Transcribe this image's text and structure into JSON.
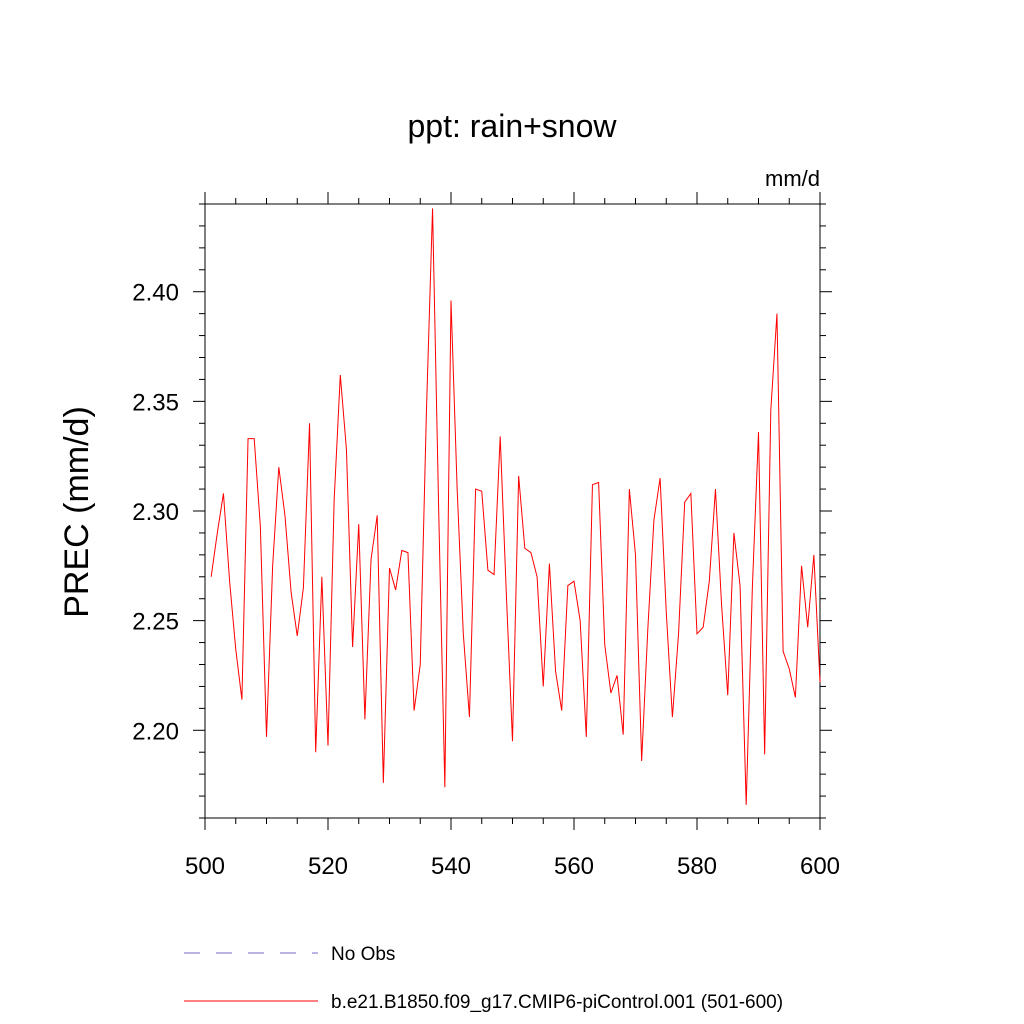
{
  "chart_data": {
    "type": "line",
    "title": "ppt: rain+snow",
    "units": "mm/d",
    "ylabel": "PREC  (mm/d)",
    "xlabel": "",
    "xlim": [
      500,
      600
    ],
    "ylim": [
      2.16,
      2.44
    ],
    "x_ticks": [
      500,
      520,
      540,
      560,
      580,
      600
    ],
    "x_tick_labels": [
      "500",
      "520",
      "540",
      "560",
      "580",
      "600"
    ],
    "y_ticks": [
      2.2,
      2.25,
      2.3,
      2.35,
      2.4
    ],
    "y_tick_labels": [
      "2.20",
      "2.25",
      "2.30",
      "2.35",
      "2.40"
    ],
    "legend_position": "bottom",
    "series": [
      {
        "name": "No Obs",
        "color": "#7b68c8",
        "style": "dashed",
        "values": []
      },
      {
        "name": "b.e21.B1850.f09_g17.CMIP6-piControl.001 (501-600)",
        "color": "#ff0000",
        "style": "solid",
        "x": [
          501,
          502,
          503,
          504,
          505,
          506,
          507,
          508,
          509,
          510,
          511,
          512,
          513,
          514,
          515,
          516,
          517,
          518,
          519,
          520,
          521,
          522,
          523,
          524,
          525,
          526,
          527,
          528,
          529,
          530,
          531,
          532,
          533,
          534,
          535,
          536,
          537,
          538,
          539,
          540,
          541,
          542,
          543,
          544,
          545,
          546,
          547,
          548,
          549,
          550,
          551,
          552,
          553,
          554,
          555,
          556,
          557,
          558,
          559,
          560,
          561,
          562,
          563,
          564,
          565,
          566,
          567,
          568,
          569,
          570,
          571,
          572,
          573,
          574,
          575,
          576,
          577,
          578,
          579,
          580,
          581,
          582,
          583,
          584,
          585,
          586,
          587,
          588,
          589,
          590,
          591,
          592,
          593,
          594,
          595,
          596,
          597,
          598,
          599,
          600
        ],
        "values": [
          2.27,
          2.29,
          2.308,
          2.268,
          2.237,
          2.214,
          2.333,
          2.333,
          2.293,
          2.197,
          2.275,
          2.32,
          2.298,
          2.263,
          2.243,
          2.265,
          2.34,
          2.19,
          2.27,
          2.193,
          2.305,
          2.362,
          2.328,
          2.238,
          2.294,
          2.205,
          2.278,
          2.298,
          2.176,
          2.274,
          2.264,
          2.282,
          2.281,
          2.209,
          2.23,
          2.345,
          2.438,
          2.3,
          2.174,
          2.396,
          2.31,
          2.244,
          2.206,
          2.31,
          2.309,
          2.273,
          2.271,
          2.334,
          2.262,
          2.195,
          2.316,
          2.283,
          2.281,
          2.27,
          2.22,
          2.276,
          2.227,
          2.209,
          2.266,
          2.268,
          2.25,
          2.197,
          2.312,
          2.313,
          2.239,
          2.217,
          2.225,
          2.198,
          2.31,
          2.28,
          2.186,
          2.246,
          2.296,
          2.315,
          2.254,
          2.206,
          2.244,
          2.304,
          2.308,
          2.244,
          2.247,
          2.268,
          2.31,
          2.257,
          2.216,
          2.29,
          2.266,
          2.166,
          2.265,
          2.336,
          2.189,
          2.346,
          2.39,
          2.236,
          2.228,
          2.215,
          2.275,
          2.247,
          2.28,
          2.222
        ]
      }
    ]
  }
}
